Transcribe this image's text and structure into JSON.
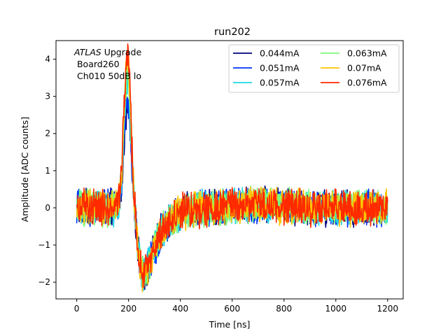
{
  "chart_data": {
    "type": "line",
    "title": "run202",
    "xlabel": "Time [ns]",
    "ylabel": "Amplitude [ADC counts]",
    "xlim": [
      -80,
      1260
    ],
    "ylim": [
      -2.45,
      4.5
    ],
    "xticks": [
      0,
      200,
      400,
      600,
      800,
      1000,
      1200
    ],
    "yticks": [
      -2,
      -1,
      0,
      1,
      2,
      3,
      4
    ],
    "grid": false,
    "legend_position": "top-right",
    "legend_columns": 2,
    "annotation": {
      "line1_italic": "ATLAS",
      "line1_rest": " Upgrade",
      "line2": " Board260",
      "line3": " Ch010 50dB lo"
    },
    "pulse_shape": {
      "x": [
        0,
        150,
        165,
        175,
        182,
        190,
        198,
        205,
        212,
        220,
        230,
        240,
        250,
        262,
        275,
        290,
        310,
        340,
        380,
        430,
        500,
        600,
        700,
        800,
        900,
        1000,
        1100,
        1200
      ],
      "y": [
        0,
        0,
        0.3,
        1.2,
        2.6,
        3.8,
        4.1,
        3.2,
        1.8,
        0.5,
        -0.6,
        -1.3,
        -1.7,
        -1.8,
        -1.6,
        -1.3,
        -0.9,
        -0.5,
        -0.2,
        -0.05,
        0,
        0.05,
        0.1,
        0.05,
        0,
        0,
        0,
        0
      ]
    },
    "noise_amplitude": 0.55,
    "series": [
      {
        "name": "0.044mA",
        "color": "#00007f",
        "peak_scale": 0.66
      },
      {
        "name": "0.051mA",
        "color": "#0033ff",
        "peak_scale": 0.72
      },
      {
        "name": "0.057mA",
        "color": "#1ed7e6",
        "peak_scale": 0.82
      },
      {
        "name": "0.063mA",
        "color": "#7dff7a",
        "peak_scale": 0.9
      },
      {
        "name": "0.07mA",
        "color": "#ffc400",
        "peak_scale": 0.97
      },
      {
        "name": "0.076mA",
        "color": "#ff2a00",
        "peak_scale": 1.0
      }
    ]
  }
}
